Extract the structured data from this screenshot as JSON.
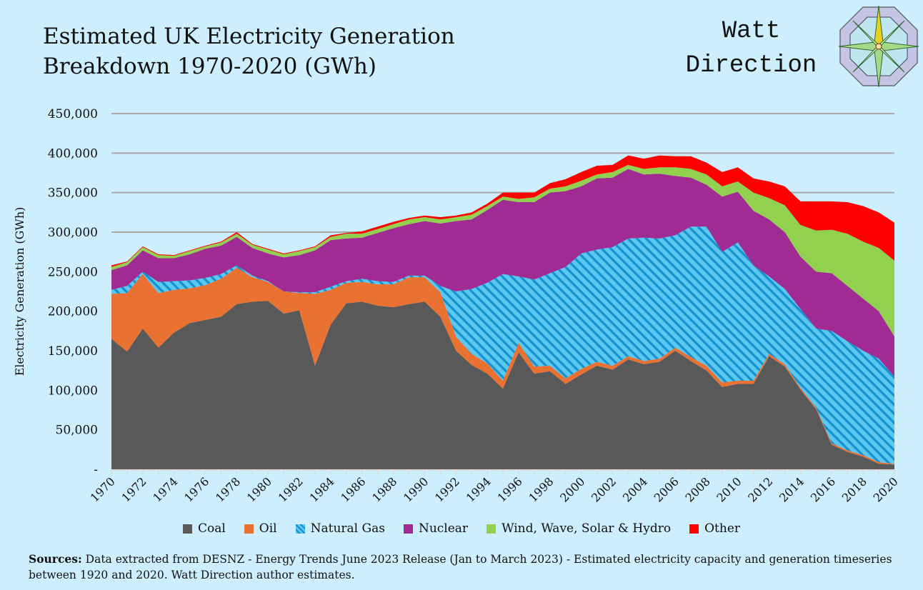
{
  "header": {
    "title_line1": "Estimated UK Electricity Generation",
    "title_line2": "Breakdown 1970-2020 (GWh)",
    "logo_line1": "Watt",
    "logo_line2": "Direction"
  },
  "footer": {
    "sources_label": "Sources:",
    "sources_text": " Data extracted from DESNZ - Energy Trends June 2023 Release (Jan to March 2023) - Estimated electricity capacity and generation timeseries between 1920 and 2020. Watt Direction author estimates."
  },
  "chart_data": {
    "type": "area",
    "stacked": true,
    "title": "Estimated UK Electricity Generation Breakdown 1970-2020 (GWh)",
    "xlabel": "",
    "ylabel": "Electricity Generation (GWh)",
    "ylim": [
      0,
      450000
    ],
    "yticks": [
      0,
      50000,
      100000,
      150000,
      200000,
      250000,
      300000,
      350000,
      400000,
      450000
    ],
    "ytick_labels": [
      "-",
      "50,000",
      "100,000",
      "150,000",
      "200,000",
      "250,000",
      "300,000",
      "350,000",
      "400,000",
      "450,000"
    ],
    "xtick_labels": [
      "1970",
      "1972",
      "1974",
      "1976",
      "1978",
      "1980",
      "1982",
      "1984",
      "1986",
      "1988",
      "1990",
      "1992",
      "1994",
      "1996",
      "1998",
      "2000",
      "2002",
      "2004",
      "2006",
      "2008",
      "2010",
      "2012",
      "2014",
      "2016",
      "2018",
      "2020"
    ],
    "grid": true,
    "legend": "bottom",
    "values_unit_multiplier": 1000,
    "x": [
      1970,
      1971,
      1972,
      1973,
      1974,
      1975,
      1976,
      1977,
      1978,
      1979,
      1980,
      1981,
      1982,
      1983,
      1984,
      1985,
      1986,
      1987,
      1988,
      1989,
      1990,
      1991,
      1992,
      1993,
      1994,
      1995,
      1996,
      1997,
      1998,
      1999,
      2000,
      2001,
      2002,
      2003,
      2004,
      2005,
      2006,
      2007,
      2008,
      2009,
      2010,
      2011,
      2012,
      2013,
      2014,
      2015,
      2016,
      2017,
      2018,
      2019,
      2020
    ],
    "series": [
      {
        "name": "Coal",
        "color": "#595959",
        "values": [
          165,
          149,
          178,
          154,
          173,
          185,
          189,
          193,
          209,
          212,
          213,
          197,
          201,
          131,
          183,
          210,
          212,
          207,
          205,
          209,
          212,
          193,
          150,
          132,
          121,
          102,
          148,
          121,
          124,
          108,
          120,
          131,
          126,
          139,
          133,
          136,
          150,
          137,
          125,
          104,
          108,
          108,
          143,
          130,
          101,
          76,
          31,
          22,
          16,
          7,
          6
        ]
      },
      {
        "name": "Oil",
        "color": "#e97132",
        "values": [
          57,
          74,
          69,
          69,
          54,
          44,
          44,
          48,
          46,
          31,
          24,
          28,
          22,
          91,
          44,
          26,
          25,
          27,
          29,
          34,
          31,
          31,
          18,
          14,
          13,
          10,
          12,
          9,
          7,
          7,
          7,
          5,
          5,
          4,
          4,
          4,
          4,
          5,
          6,
          6,
          4,
          4,
          3,
          3,
          2,
          2,
          2,
          2,
          2,
          2,
          1
        ]
      },
      {
        "name": "Natural Gas",
        "color": "#5bc8f0",
        "color2": "#1590d0",
        "pattern": "diagonal-stripes",
        "values": [
          5,
          9,
          3,
          14,
          11,
          10,
          9,
          6,
          3,
          2,
          1,
          0,
          1,
          2,
          4,
          2,
          4,
          4,
          3,
          2,
          2,
          8,
          57,
          82,
          102,
          135,
          84,
          110,
          117,
          141,
          146,
          142,
          150,
          149,
          156,
          152,
          142,
          165,
          176,
          165,
          175,
          146,
          98,
          95,
          100,
          100,
          142,
          138,
          132,
          131,
          110
        ]
      },
      {
        "name": "Nuclear",
        "color": "#a02b93",
        "values": [
          25,
          26,
          27,
          30,
          29,
          33,
          37,
          36,
          36,
          35,
          35,
          43,
          47,
          53,
          59,
          54,
          52,
          61,
          68,
          65,
          69,
          79,
          89,
          88,
          92,
          94,
          94,
          98,
          102,
          96,
          85,
          90,
          88,
          88,
          80,
          82,
          75,
          62,
          53,
          70,
          64,
          69,
          72,
          72,
          66,
          72,
          73,
          70,
          66,
          60,
          51
        ]
      },
      {
        "name": "Wind, Wave, Solar & Hydro",
        "color": "#92d050",
        "values": [
          4,
          4,
          4,
          4,
          3,
          4,
          3,
          4,
          4,
          4,
          5,
          4,
          5,
          4,
          4,
          6,
          5,
          5,
          5,
          6,
          5,
          5,
          5,
          6,
          5,
          4,
          4,
          6,
          5,
          6,
          7,
          5,
          7,
          5,
          7,
          8,
          11,
          11,
          13,
          13,
          13,
          23,
          27,
          34,
          40,
          52,
          55,
          66,
          72,
          80,
          96
        ]
      },
      {
        "name": "Other",
        "color": "#ff0000",
        "values": [
          2,
          1,
          1,
          1,
          1,
          1,
          1,
          1,
          2,
          1,
          1,
          1,
          1,
          1,
          2,
          1,
          3,
          3,
          3,
          2,
          2,
          3,
          2,
          3,
          3,
          5,
          8,
          6,
          7,
          9,
          11,
          11,
          9,
          12,
          13,
          15,
          14,
          16,
          15,
          18,
          18,
          18,
          21,
          24,
          30,
          37,
          36,
          40,
          45,
          45,
          48
        ]
      }
    ]
  }
}
